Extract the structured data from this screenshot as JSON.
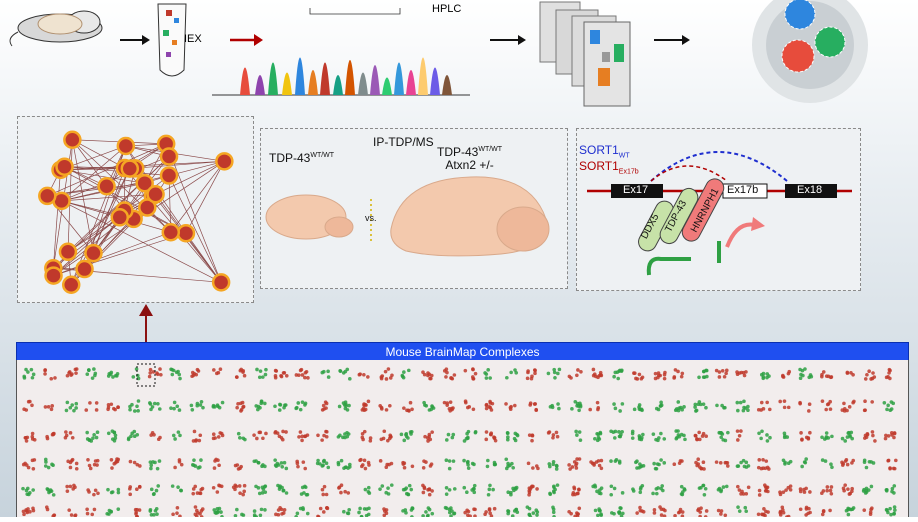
{
  "pipeline": {
    "iex_label": "IEX",
    "hplc_label": "HPLC"
  },
  "ip_panel": {
    "title": "IP-TDP/MS",
    "left_genotype": "TDP-43",
    "left_sup": "WT/WT",
    "right_genotype": "TDP-43",
    "right_sup": "WT/WT",
    "right_line2": "Atxn2 +/-",
    "vs_label": "vs."
  },
  "splice_panel": {
    "sort1_wt": "SORT1",
    "sort1_wt_sub": "WT",
    "sort1_ex17b": "SORT1",
    "sort1_ex17b_sub": "Ex17b",
    "exons": [
      "Ex17",
      "Ex17b",
      "Ex18"
    ],
    "proteins": [
      "DDX5",
      "TDP-43",
      "HNRNPH1"
    ]
  },
  "complex_bar": {
    "title": "Mouse BrainMap Complexes"
  },
  "colors": {
    "accent_blue": "#1f4ff0",
    "node_red": "#c0392b",
    "node_green": "#2ea043",
    "arrow_red": "#8b1010"
  }
}
